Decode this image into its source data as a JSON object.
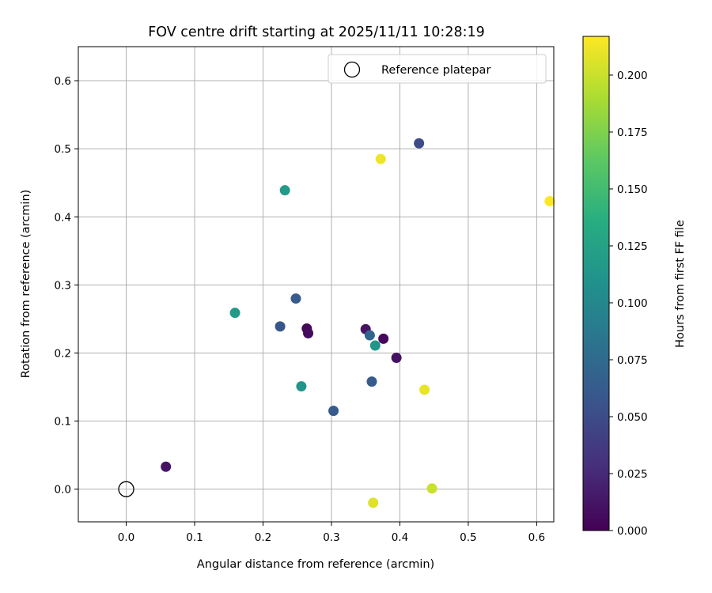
{
  "chart_data": {
    "type": "scatter",
    "title": "FOV centre drift starting at 2025/11/11 10:28:19",
    "xlabel": "Angular distance from reference (arcmin)",
    "ylabel": "Rotation from reference (arcmin)",
    "xlim": [
      -0.07,
      0.625
    ],
    "ylim": [
      -0.048,
      0.65
    ],
    "xticks": [
      "0.0",
      "0.1",
      "0.2",
      "0.3",
      "0.4",
      "0.5",
      "0.6"
    ],
    "yticks": [
      "0.0",
      "0.1",
      "0.2",
      "0.3",
      "0.4",
      "0.5",
      "0.6"
    ],
    "grid": true,
    "legend": {
      "placement": "top-right",
      "entries": [
        "Reference platepar"
      ]
    },
    "reference_point": {
      "x": 0.0,
      "y": 0.0
    },
    "colorbar": {
      "label": "Hours from first FF file",
      "range": [
        0.0,
        0.217
      ],
      "ticks": [
        "0.000",
        "0.025",
        "0.050",
        "0.075",
        "0.100",
        "0.125",
        "0.150",
        "0.175",
        "0.200"
      ],
      "colormap": "viridis"
    },
    "points": [
      {
        "x": 0.058,
        "y": 0.033,
        "c": 0.012
      },
      {
        "x": 0.159,
        "y": 0.259,
        "c": 0.117
      },
      {
        "x": 0.225,
        "y": 0.239,
        "c": 0.058
      },
      {
        "x": 0.232,
        "y": 0.439,
        "c": 0.118
      },
      {
        "x": 0.248,
        "y": 0.28,
        "c": 0.062
      },
      {
        "x": 0.256,
        "y": 0.151,
        "c": 0.112
      },
      {
        "x": 0.264,
        "y": 0.236,
        "c": 0.004
      },
      {
        "x": 0.266,
        "y": 0.229,
        "c": 0.006
      },
      {
        "x": 0.303,
        "y": 0.115,
        "c": 0.062
      },
      {
        "x": 0.35,
        "y": 0.235,
        "c": 0.012
      },
      {
        "x": 0.356,
        "y": 0.226,
        "c": 0.07
      },
      {
        "x": 0.359,
        "y": 0.158,
        "c": 0.062
      },
      {
        "x": 0.361,
        "y": -0.02,
        "c": 0.207
      },
      {
        "x": 0.364,
        "y": 0.211,
        "c": 0.112
      },
      {
        "x": 0.372,
        "y": 0.485,
        "c": 0.212
      },
      {
        "x": 0.376,
        "y": 0.221,
        "c": 0.004
      },
      {
        "x": 0.395,
        "y": 0.193,
        "c": 0.01
      },
      {
        "x": 0.428,
        "y": 0.508,
        "c": 0.05
      },
      {
        "x": 0.436,
        "y": 0.146,
        "c": 0.21
      },
      {
        "x": 0.447,
        "y": 0.001,
        "c": 0.2
      },
      {
        "x": 0.619,
        "y": 0.423,
        "c": 0.217
      }
    ]
  }
}
